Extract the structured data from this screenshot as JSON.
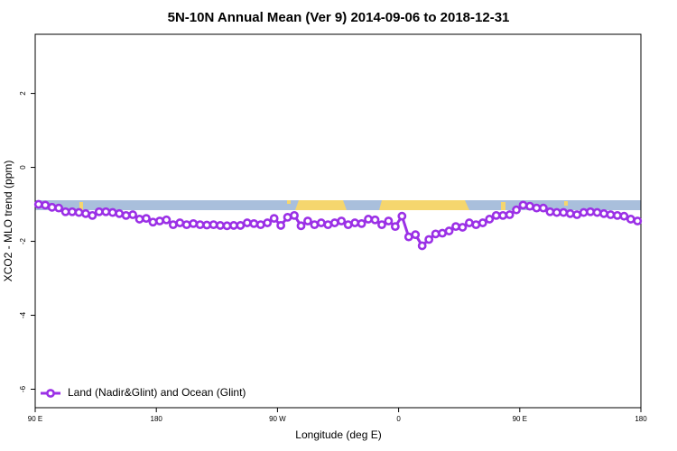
{
  "chart_data": {
    "type": "line",
    "title": "5N-10N Annual Mean (Ver 9)   2014-09-06 to 2018-12-31",
    "x_label": "Longitude (deg E)",
    "y_label": "XCO2 - MLO trend (ppm)",
    "xlim": [
      90,
      540
    ],
    "xticks": [
      {
        "value": 90,
        "label": "90 E"
      },
      180,
      {
        "value": 270,
        "label": "90 W"
      },
      {
        "value": 360,
        "label": "0"
      },
      {
        "value": 450,
        "label": "90 E"
      },
      {
        "value": 540,
        "label": "180"
      }
    ],
    "ylim": [
      -6.5,
      3.6
    ],
    "yticks": [
      -6,
      -4,
      -2,
      0,
      2
    ],
    "legend": "bottom-left",
    "x": [
      92.5,
      97.5,
      102.5,
      107.5,
      112.5,
      117.5,
      122.5,
      127.5,
      132.5,
      137.5,
      142.5,
      147.5,
      152.5,
      157.5,
      162.5,
      167.5,
      172.5,
      177.5,
      182.5,
      187.5,
      192.5,
      197.5,
      202.5,
      207.5,
      212.5,
      217.5,
      222.5,
      227.5,
      232.5,
      237.5,
      242.5,
      247.5,
      252.5,
      257.5,
      262.5,
      267.5,
      272.5,
      277.5,
      282.5,
      287.5,
      292.5,
      297.5,
      302.5,
      307.5,
      312.5,
      317.5,
      322.5,
      327.5,
      332.5,
      337.5,
      342.5,
      347.5,
      352.5,
      357.5,
      362.5,
      367.5,
      372.5,
      377.5,
      382.5,
      387.5,
      392.5,
      397.5,
      402.5,
      407.5,
      412.5,
      417.5,
      422.5,
      427.5,
      432.5,
      437.5,
      442.5,
      447.5,
      452.5,
      457.5,
      462.5,
      467.5,
      472.5,
      477.5,
      482.5,
      487.5,
      492.5,
      497.5,
      502.5,
      507.5,
      512.5,
      517.5,
      522.5,
      527.5,
      532.5,
      537.5
    ],
    "series": [
      {
        "name": "Land (Nadir&Glint) and Ocean (Glint)",
        "color": "#9b30e6",
        "values": [
          -1.0,
          -1.02,
          -1.08,
          -1.1,
          -1.2,
          -1.2,
          -1.22,
          -1.25,
          -1.3,
          -1.2,
          -1.2,
          -1.22,
          -1.25,
          -1.3,
          -1.28,
          -1.4,
          -1.38,
          -1.48,
          -1.45,
          -1.42,
          -1.55,
          -1.5,
          -1.55,
          -1.52,
          -1.55,
          -1.56,
          -1.55,
          -1.57,
          -1.58,
          -1.57,
          -1.57,
          -1.5,
          -1.52,
          -1.55,
          -1.5,
          -1.38,
          -1.57,
          -1.35,
          -1.3,
          -1.58,
          -1.45,
          -1.55,
          -1.5,
          -1.55,
          -1.5,
          -1.45,
          -1.55,
          -1.5,
          -1.52,
          -1.4,
          -1.42,
          -1.55,
          -1.45,
          -1.6,
          -1.32,
          -1.88,
          -1.82,
          -2.12,
          -1.95,
          -1.8,
          -1.78,
          -1.72,
          -1.6,
          -1.62,
          -1.5,
          -1.55,
          -1.5,
          -1.4,
          -1.3,
          -1.3,
          -1.28,
          -1.15,
          -1.02,
          -1.05,
          -1.1,
          -1.1,
          -1.2,
          -1.22,
          -1.22,
          -1.25,
          -1.28,
          -1.22,
          -1.2,
          -1.22,
          -1.25,
          -1.28,
          -1.3,
          -1.32,
          -1.4,
          -1.45
        ]
      }
    ]
  }
}
